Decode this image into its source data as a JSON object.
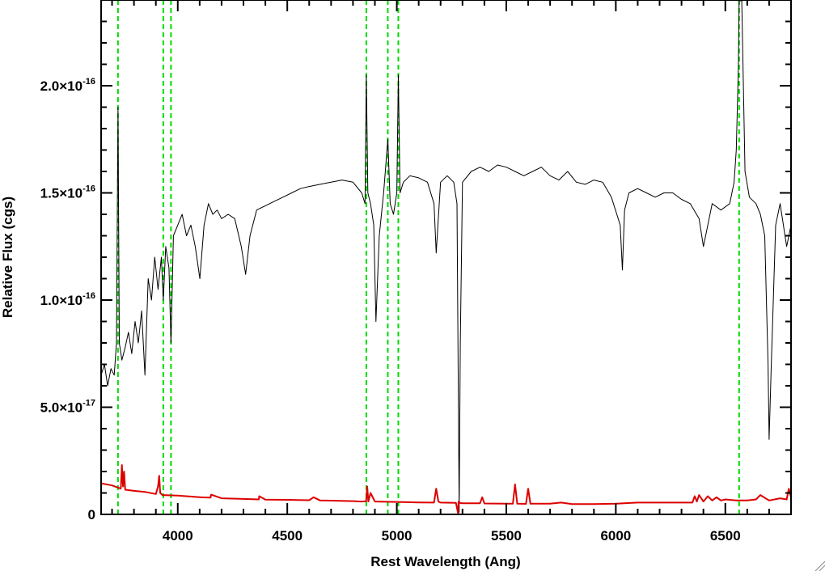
{
  "chart_data": {
    "type": "line",
    "xlabel": "Rest Wavelength (Ang)",
    "ylabel": "Relative Flux (cgs)",
    "xlim": [
      3650,
      6800
    ],
    "ylim": [
      0,
      2.4e-16
    ],
    "x_ticks": [
      {
        "value": 4000,
        "label": "4000"
      },
      {
        "value": 4500,
        "label": "4500"
      },
      {
        "value": 5000,
        "label": "5000"
      },
      {
        "value": 5500,
        "label": "5500"
      },
      {
        "value": 6000,
        "label": "6000"
      },
      {
        "value": 6500,
        "label": "6500"
      }
    ],
    "y_ticks": [
      {
        "value": 0,
        "mantissa": "0",
        "exponent": ""
      },
      {
        "value": 5e-17,
        "mantissa": "5.0×10",
        "exponent": "-17"
      },
      {
        "value": 1e-16,
        "mantissa": "1.0×10",
        "exponent": "-16"
      },
      {
        "value": 1.5e-16,
        "mantissa": "1.5×10",
        "exponent": "-16"
      },
      {
        "value": 2e-16,
        "mantissa": "2.0×10",
        "exponent": "-16"
      }
    ],
    "grid": false,
    "reference_lines": {
      "color": "#00dd00",
      "style": "dashed",
      "x": [
        3727,
        3934,
        3969,
        4861,
        4959,
        5007,
        6563
      ]
    },
    "series": [
      {
        "color": "#000000",
        "x": [
          3650,
          3665,
          3680,
          3695,
          3710,
          3720,
          3727,
          3733,
          3745,
          3760,
          3775,
          3790,
          3805,
          3820,
          3835,
          3850,
          3865,
          3880,
          3895,
          3910,
          3925,
          3934,
          3945,
          3960,
          3969,
          3980,
          4000,
          4020,
          4040,
          4060,
          4080,
          4101,
          4120,
          4140,
          4160,
          4180,
          4200,
          4230,
          4260,
          4290,
          4310,
          4330,
          4360,
          4400,
          4440,
          4480,
          4520,
          4560,
          4600,
          4650,
          4700,
          4750,
          4800,
          4840,
          4855,
          4861,
          4868,
          4880,
          4895,
          4905,
          4920,
          4940,
          4959,
          4970,
          4985,
          5000,
          5007,
          5015,
          5030,
          5060,
          5100,
          5140,
          5170,
          5180,
          5200,
          5230,
          5260,
          5275,
          5280,
          5285,
          5290,
          5300,
          5340,
          5380,
          5420,
          5460,
          5500,
          5540,
          5580,
          5620,
          5660,
          5700,
          5740,
          5780,
          5820,
          5860,
          5900,
          5940,
          5980,
          6020,
          6030,
          6040,
          6060,
          6100,
          6140,
          6180,
          6220,
          6260,
          6300,
          6340,
          6380,
          6400,
          6440,
          6480,
          6520,
          6540,
          6550,
          6560,
          6563,
          6566,
          6575,
          6590,
          6610,
          6640,
          6660,
          6680,
          6695,
          6700,
          6710,
          6730,
          6750,
          6780,
          6800
        ],
        "y": [
          6.5e-17,
          7e-17,
          6e-17,
          6.8e-17,
          6.5e-17,
          8e-17,
          1.9e-16,
          8e-17,
          7.2e-17,
          7.8e-17,
          8.5e-17,
          7.5e-17,
          9e-17,
          8e-17,
          9.5e-17,
          6.5e-17,
          1.1e-16,
          1e-16,
          1.2e-16,
          1.05e-16,
          1.2e-16,
          1e-16,
          1.25e-16,
          1.15e-16,
          8e-17,
          1.3e-16,
          1.35e-16,
          1.4e-16,
          1.3e-16,
          1.35e-16,
          1.25e-16,
          1.1e-16,
          1.35e-16,
          1.45e-16,
          1.4e-16,
          1.42e-16,
          1.38e-16,
          1.4e-16,
          1.38e-16,
          1.25e-16,
          1.12e-16,
          1.3e-16,
          1.42e-16,
          1.44e-16,
          1.46e-16,
          1.48e-16,
          1.5e-16,
          1.52e-16,
          1.53e-16,
          1.54e-16,
          1.55e-16,
          1.56e-16,
          1.55e-16,
          1.5e-16,
          1.45e-16,
          2.05e-16,
          1.5e-16,
          1.45e-16,
          1.35e-16,
          9e-17,
          1.3e-16,
          1.5e-16,
          1.75e-16,
          1.45e-16,
          1.4e-16,
          1.5e-16,
          2.05e-16,
          1.5e-16,
          1.55e-16,
          1.58e-16,
          1.57e-16,
          1.55e-16,
          1.45e-16,
          1.22e-16,
          1.55e-16,
          1.58e-16,
          1.55e-16,
          1.45e-16,
          7e-17,
          1e-18,
          8e-17,
          1.55e-16,
          1.6e-16,
          1.62e-16,
          1.6e-16,
          1.63e-16,
          1.62e-16,
          1.6e-16,
          1.58e-16,
          1.6e-16,
          1.62e-16,
          1.58e-16,
          1.56e-16,
          1.6e-16,
          1.55e-16,
          1.54e-16,
          1.56e-16,
          1.55e-16,
          1.48e-16,
          1.35e-16,
          1.14e-16,
          1.42e-16,
          1.5e-16,
          1.52e-16,
          1.5e-16,
          1.48e-16,
          1.5e-16,
          1.5e-16,
          1.47e-16,
          1.45e-16,
          1.38e-16,
          1.25e-16,
          1.45e-16,
          1.42e-16,
          1.45e-16,
          1.55e-16,
          1.7e-16,
          2.1e-16,
          2.4e-16,
          2.4e-16,
          2.4e-16,
          1.6e-16,
          1.48e-16,
          1.45e-16,
          1.4e-16,
          1.3e-16,
          7e-17,
          3.5e-17,
          7e-17,
          1.35e-16,
          1.45e-16,
          1.25e-16,
          1.35e-16
        ]
      },
      {
        "color": "#dd0000",
        "x": [
          3650,
          3700,
          3740,
          3745,
          3750,
          3755,
          3760,
          3800,
          3850,
          3900,
          3910,
          3915,
          3920,
          3930,
          4000,
          4100,
          4150,
          4152,
          4200,
          4300,
          4370,
          4372,
          4400,
          4500,
          4600,
          4620,
          4650,
          4700,
          4800,
          4840,
          4860,
          4865,
          4870,
          4880,
          4900,
          5000,
          5100,
          5170,
          5180,
          5190,
          5200,
          5270,
          5280,
          5282,
          5290,
          5300,
          5380,
          5390,
          5400,
          5500,
          5530,
          5540,
          5550,
          5590,
          5600,
          5610,
          5700,
          5750,
          5800,
          5900,
          6000,
          6100,
          6200,
          6300,
          6350,
          6360,
          6370,
          6380,
          6400,
          6420,
          6440,
          6460,
          6480,
          6500,
          6550,
          6600,
          6640,
          6660,
          6700,
          6750,
          6780,
          6790,
          6800
        ],
        "y": [
          1.45e-17,
          1.35e-17,
          1.2e-17,
          2.3e-17,
          1.3e-17,
          2e-17,
          1.15e-17,
          1.1e-17,
          1.05e-17,
          9.5e-18,
          1.3e-17,
          1.8e-17,
          1e-17,
          9e-18,
          8.8e-18,
          8e-18,
          7.8e-18,
          9.2e-18,
          7.5e-18,
          7.2e-18,
          7e-18,
          8.5e-18,
          6.9e-18,
          6.8e-18,
          6.6e-18,
          8e-18,
          6.5e-18,
          6.4e-18,
          6.2e-18,
          6e-18,
          6.1e-18,
          1.3e-17,
          6e-18,
          1e-17,
          6e-18,
          5.8e-18,
          5.6e-18,
          5.5e-18,
          1.2e-17,
          6e-18,
          5.5e-18,
          5.4e-18,
          -2e-18,
          6e-18,
          5.3e-18,
          5.2e-18,
          5.2e-18,
          8e-18,
          5.1e-18,
          5e-18,
          5e-18,
          1.4e-17,
          5e-18,
          4.9e-18,
          1.2e-17,
          5e-18,
          5e-18,
          5.5e-18,
          4.8e-18,
          4.8e-18,
          5e-18,
          5.5e-18,
          5.5e-18,
          5.5e-18,
          5.5e-18,
          8.5e-18,
          6e-18,
          9e-18,
          6e-18,
          8.5e-18,
          6.5e-18,
          8e-18,
          6.5e-18,
          7e-18,
          6.5e-18,
          6.5e-18,
          7e-18,
          9e-18,
          6.5e-18,
          7.5e-18,
          7e-18,
          1.2e-17,
          8e-18
        ]
      }
    ]
  }
}
